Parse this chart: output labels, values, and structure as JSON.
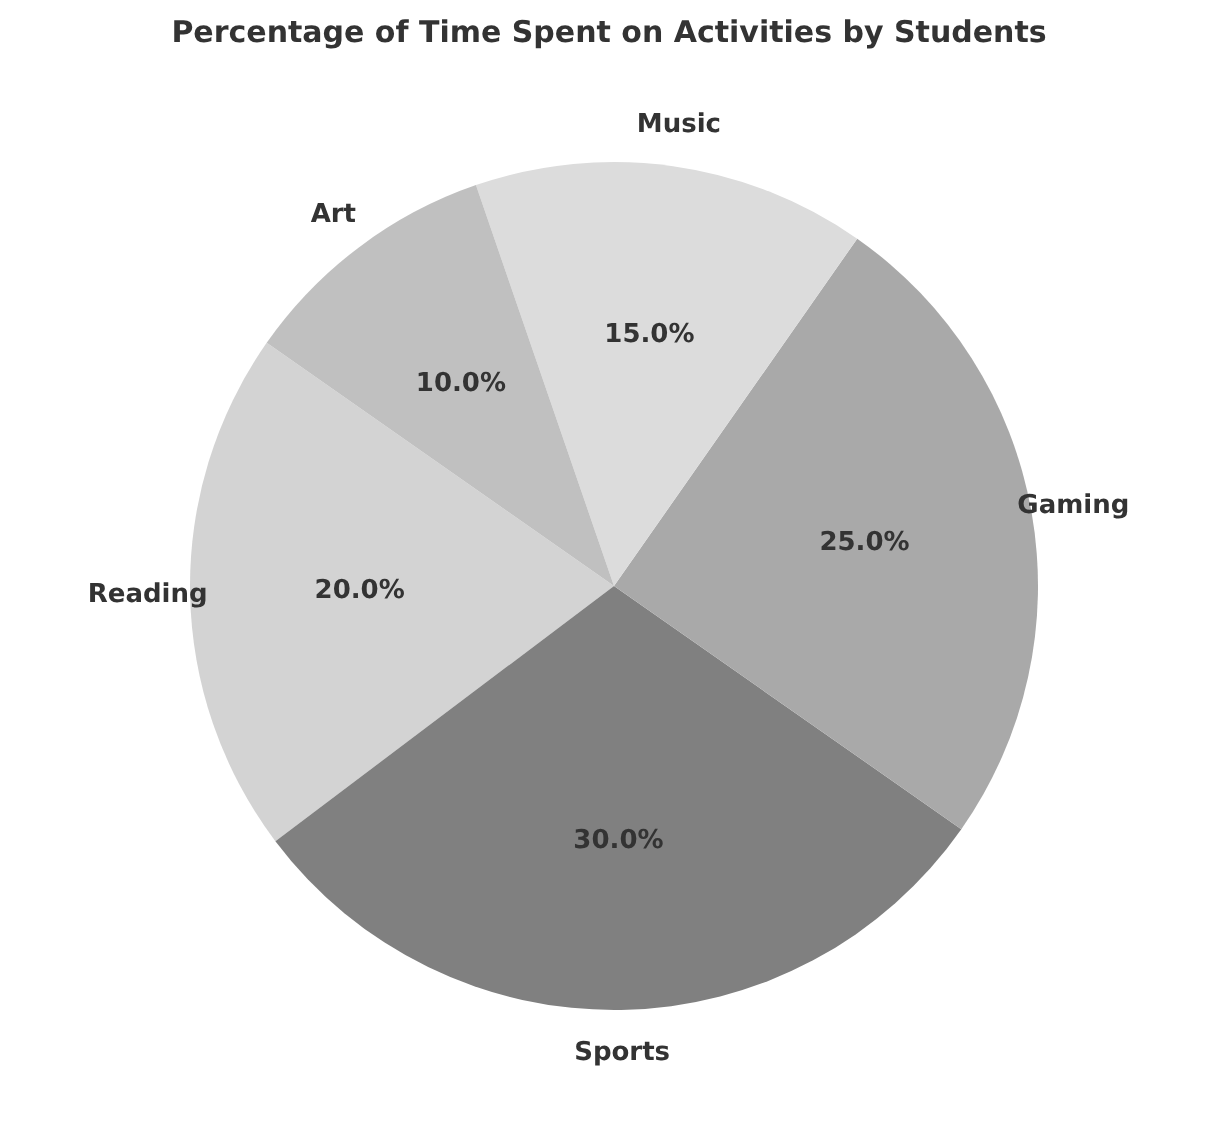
{
  "chart_data": {
    "type": "pie",
    "title": "Percentage of Time Spent on Activities by Students",
    "categories": [
      "Reading",
      "Sports",
      "Gaming",
      "Music",
      "Art"
    ],
    "values": [
      20,
      30,
      25,
      15,
      10
    ],
    "colors": [
      "#d3d3d3",
      "#808080",
      "#a9a9a9",
      "#dcdcdc",
      "#c0c0c0"
    ],
    "value_labels": [
      "20.0%",
      "30.0%",
      "25.0%",
      "15.0%",
      "10.0%"
    ]
  }
}
